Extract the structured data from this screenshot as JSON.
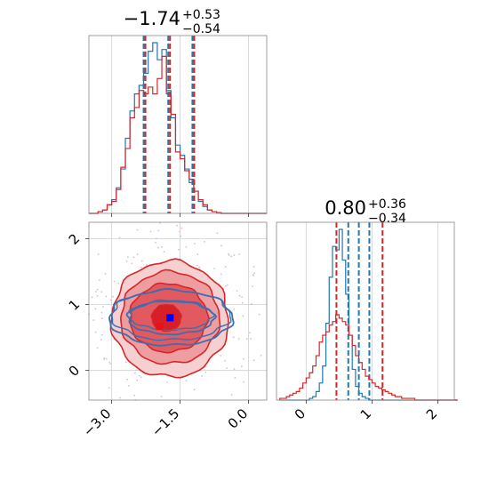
{
  "chart_data": [
    {
      "type": "histogram",
      "panel": "top-left",
      "title_value": "−1.74",
      "title_plus": "+0.53",
      "title_minus": "−0.54",
      "xlim": [
        -3.5,
        0.4
      ],
      "x_ticks": [
        -3.0,
        -1.5,
        0.0
      ],
      "quantile_lines": [
        -2.28,
        -1.74,
        -1.21
      ],
      "bin_start": -3.5,
      "bin_width": 0.1,
      "series": [
        {
          "color": "#1f77b4",
          "values": [
            0,
            0,
            0.01,
            0.02,
            0.05,
            0.08,
            0.15,
            0.26,
            0.44,
            0.6,
            0.7,
            0.75,
            0.82,
            0.95,
            1.0,
            0.9,
            0.96,
            0.72,
            0.56,
            0.4,
            0.34,
            0.26,
            0.18,
            0.13,
            0.07,
            0.04,
            0.02,
            0.01,
            0.005,
            0,
            0,
            0,
            0,
            0,
            0,
            0,
            0,
            0,
            0
          ]
        },
        {
          "color": "#d62728",
          "values": [
            0,
            0,
            0.01,
            0.02,
            0.05,
            0.07,
            0.14,
            0.27,
            0.38,
            0.56,
            0.62,
            0.72,
            0.7,
            0.74,
            0.7,
            0.79,
            0.92,
            0.7,
            0.58,
            0.36,
            0.32,
            0.25,
            0.2,
            0.13,
            0.08,
            0.05,
            0.02,
            0.01,
            0.005,
            0,
            0,
            0,
            0,
            0,
            0,
            0,
            0,
            0,
            0
          ]
        }
      ]
    },
    {
      "type": "contour",
      "panel": "bottom-left",
      "xlim": [
        -3.5,
        0.4
      ],
      "ylim": [
        -0.45,
        2.25
      ],
      "x_ticks": [
        -3.0,
        -1.5,
        0.0
      ],
      "x_tick_labels": [
        "−3.0",
        "−1.5",
        "0.0"
      ],
      "y_ticks": [
        0,
        1,
        2
      ],
      "y_tick_labels": [
        "0",
        "1",
        "2"
      ],
      "red_peak": {
        "x": -1.95,
        "y": 0.67,
        "color": "#e8101a"
      },
      "blue_peak": {
        "x": -1.72,
        "y": 0.8,
        "color": "#0000ff"
      },
      "red_contours": [
        {
          "cx": -1.8,
          "cy": 0.8,
          "rx": 0.32,
          "ry": 0.2
        },
        {
          "cx": -1.75,
          "cy": 0.8,
          "rx": 0.85,
          "ry": 0.52
        },
        {
          "cx": -1.72,
          "cy": 0.8,
          "rx": 1.08,
          "ry": 0.7
        },
        {
          "cx": -1.72,
          "cy": 0.78,
          "rx": 1.28,
          "ry": 0.88
        }
      ],
      "blue_contours": [
        {
          "cx": -1.7,
          "cy": 0.8,
          "rx": 0.95,
          "ry": 0.25
        },
        {
          "cx": -1.7,
          "cy": 0.8,
          "rx": 1.35,
          "ry": 0.42
        }
      ]
    },
    {
      "type": "histogram",
      "panel": "bottom-right",
      "title_value": "0.80",
      "title_plus": "+0.36",
      "title_minus": "−0.34",
      "xlim": [
        -0.45,
        2.25
      ],
      "x_ticks": [
        0,
        1,
        2
      ],
      "x_tick_labels": [
        "0",
        "1",
        "2"
      ],
      "quantile_lines": [
        {
          "x": 0.46,
          "color": "#d62728"
        },
        {
          "x": 0.64,
          "color": "#1f77b4"
        },
        {
          "x": 0.8,
          "color": "#1f77b4"
        },
        {
          "x": 0.96,
          "color": "#1f77b4"
        },
        {
          "x": 1.16,
          "color": "#d62728"
        }
      ],
      "bin_start": -0.4,
      "bin_width": 0.05,
      "series": [
        {
          "color": "#1f77b4",
          "values": [
            0,
            0,
            0,
            0,
            0,
            0,
            0,
            0,
            0,
            0.01,
            0.02,
            0.05,
            0.1,
            0.2,
            0.45,
            0.72,
            0.9,
            0.88,
            1.0,
            0.82,
            0.62,
            0.38,
            0.18,
            0.08,
            0.04,
            0.02,
            0.01,
            0,
            0,
            0,
            0,
            0,
            0,
            0,
            0,
            0,
            0,
            0,
            0,
            0,
            0,
            0,
            0,
            0,
            0,
            0,
            0,
            0,
            0,
            0,
            0,
            0,
            0,
            0
          ]
        },
        {
          "color": "#d62728",
          "values": [
            0.01,
            0.01,
            0.02,
            0.03,
            0.04,
            0.05,
            0.07,
            0.1,
            0.13,
            0.16,
            0.2,
            0.26,
            0.34,
            0.38,
            0.4,
            0.44,
            0.46,
            0.5,
            0.48,
            0.46,
            0.44,
            0.38,
            0.32,
            0.26,
            0.22,
            0.18,
            0.14,
            0.12,
            0.1,
            0.08,
            0.07,
            0.06,
            0.05,
            0.04,
            0.03,
            0.02,
            0.02,
            0.01,
            0.01,
            0.01,
            0.01,
            0,
            0,
            0,
            0,
            0,
            0,
            0,
            0,
            0,
            0,
            0,
            0,
            0
          ]
        }
      ]
    }
  ]
}
